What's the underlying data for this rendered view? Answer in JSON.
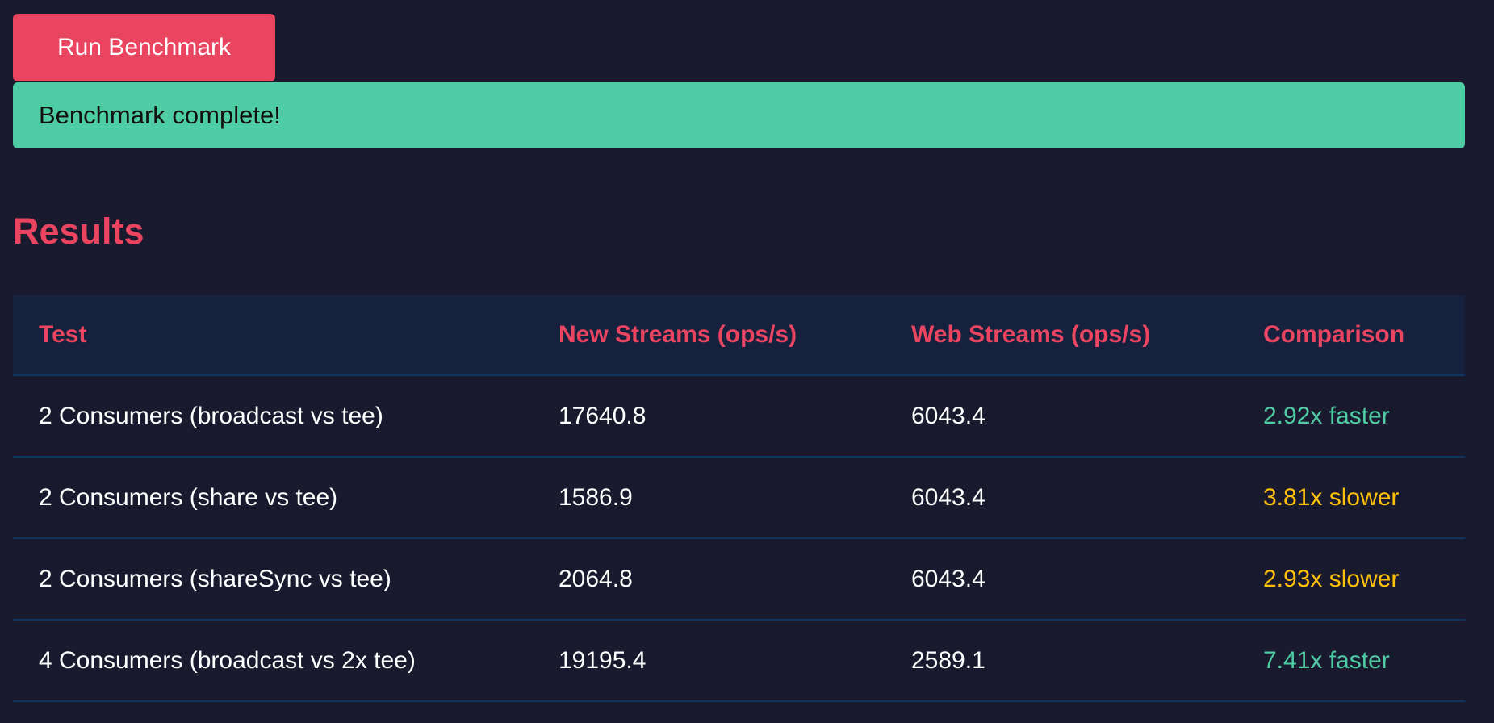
{
  "toolbar": {
    "run_label": "Run Benchmark"
  },
  "status": {
    "message": "Benchmark complete!"
  },
  "results": {
    "title": "Results",
    "columns": [
      "Test",
      "New Streams (ops/s)",
      "Web Streams (ops/s)",
      "Comparison"
    ],
    "rows": [
      {
        "test": "2 Consumers (broadcast vs tee)",
        "new_streams": "17640.8",
        "web_streams": "6043.4",
        "comparison": "2.92x faster",
        "trend": "faster"
      },
      {
        "test": "2 Consumers (share vs tee)",
        "new_streams": "1586.9",
        "web_streams": "6043.4",
        "comparison": "3.81x slower",
        "trend": "slower"
      },
      {
        "test": "2 Consumers (shareSync vs tee)",
        "new_streams": "2064.8",
        "web_streams": "6043.4",
        "comparison": "2.93x slower",
        "trend": "slower"
      },
      {
        "test": "4 Consumers (broadcast vs 2x tee)",
        "new_streams": "19195.4",
        "web_streams": "2589.1",
        "comparison": "7.41x faster",
        "trend": "faster"
      }
    ]
  },
  "colors": {
    "background": "#1a1a2e",
    "accent": "#e94560",
    "success": "#4ecca3",
    "warning": "#ffc107",
    "header_bg": "#16213e",
    "border": "#0f3460"
  }
}
